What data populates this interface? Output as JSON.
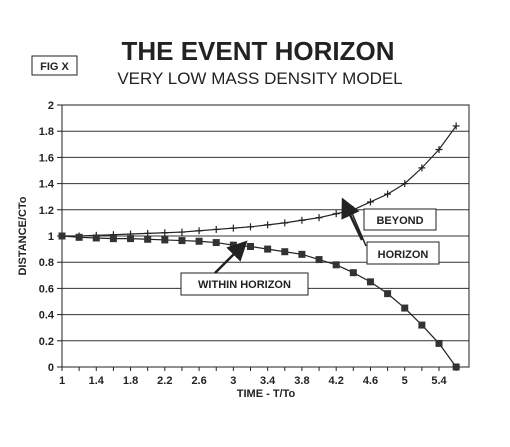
{
  "fig_label": "FIG X",
  "chart_data": {
    "type": "line",
    "title": "THE EVENT HORIZON",
    "subtitle": "VERY LOW MASS DENSITY MODEL",
    "xlabel": "TIME - T/To",
    "ylabel": "DISTANCE/CTo",
    "ylim": [
      0,
      2
    ],
    "yticks": [
      "0",
      "0.2",
      "0.4",
      "0.6",
      "0.8",
      "1",
      "1.2",
      "1.4",
      "1.6",
      "1.8",
      "2"
    ],
    "x_tick_labels": [
      "1",
      "1.4",
      "1.8",
      "2.2",
      "2.6",
      "3",
      "3.4",
      "3.8",
      "4.2",
      "4.6",
      "5",
      "5.4"
    ],
    "x": [
      1,
      1.2,
      1.4,
      1.6,
      1.8,
      2,
      2.2,
      2.4,
      2.6,
      2.8,
      3,
      3.2,
      3.4,
      3.6,
      3.8,
      4,
      4.2,
      4.4,
      4.6,
      4.8,
      5,
      5.2,
      5.4,
      5.6
    ],
    "grid": true,
    "series": [
      {
        "marker": "cross",
        "values": [
          1.0,
          1.0,
          1.005,
          1.01,
          1.015,
          1.02,
          1.025,
          1.03,
          1.04,
          1.05,
          1.06,
          1.07,
          1.085,
          1.1,
          1.12,
          1.14,
          1.17,
          1.2,
          1.26,
          1.32,
          1.4,
          1.52,
          1.66,
          1.84
        ]
      },
      {
        "marker": "square",
        "values": [
          1.0,
          0.99,
          0.985,
          0.98,
          0.98,
          0.975,
          0.97,
          0.965,
          0.96,
          0.95,
          0.93,
          0.92,
          0.9,
          0.88,
          0.86,
          0.82,
          0.78,
          0.72,
          0.65,
          0.56,
          0.45,
          0.32,
          0.18,
          0.0
        ]
      }
    ],
    "annotations": [
      {
        "id": "beyond",
        "text": "BEYOND"
      },
      {
        "id": "horizon",
        "text": "HORIZON"
      },
      {
        "id": "within",
        "text": "WITHIN HORIZON"
      }
    ]
  }
}
